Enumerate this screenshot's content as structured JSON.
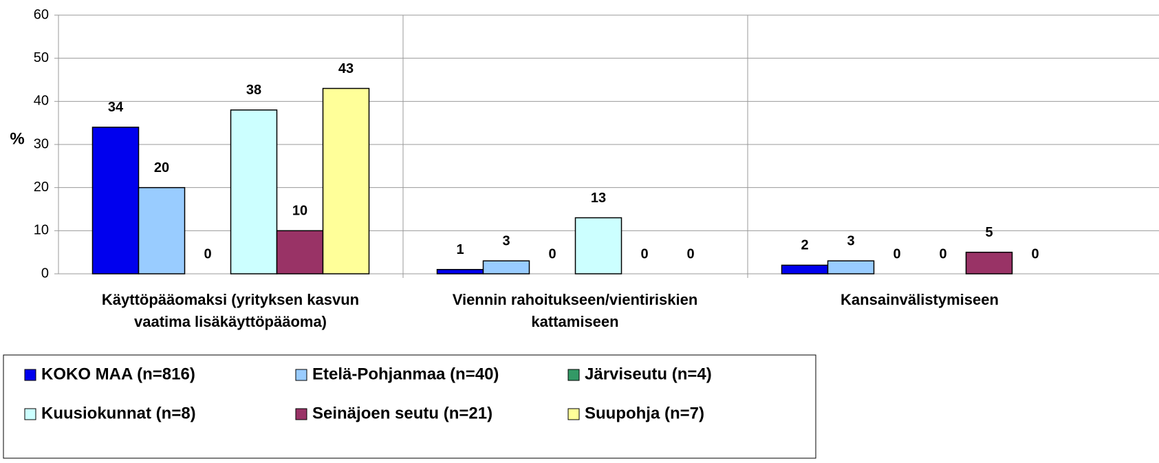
{
  "chart_data": {
    "type": "bar",
    "y_label": "%",
    "categories": [
      "Käyttöpääomaksi (yrityksen kasvun\nvaatima lisäkäyttöpääoma)",
      "Viennin rahoitukseen/vientiriskien\nkattamiseen",
      "Kansainvälistymiseen"
    ],
    "series": [
      {
        "name": "KOKO MAA (n=816)",
        "color": "#0000ee",
        "values": [
          34,
          1,
          2
        ]
      },
      {
        "name": "Etelä-Pohjanmaa (n=40)",
        "color": "#99ccff",
        "values": [
          20,
          3,
          3
        ]
      },
      {
        "name": "Järviseutu (n=4)",
        "color": "#339966",
        "values": [
          0,
          0,
          0
        ]
      },
      {
        "name": "Kuusiokunnat (n=8)",
        "color": "#ccffff",
        "values": [
          38,
          13,
          0
        ]
      },
      {
        "name": "Seinäjoen seutu (n=21)",
        "color": "#993366",
        "values": [
          10,
          0,
          5
        ]
      },
      {
        "name": "Suupohja (n=7)",
        "color": "#ffff99",
        "values": [
          43,
          0,
          0
        ]
      }
    ],
    "ylim": [
      0,
      60
    ],
    "yticks": [
      0,
      10,
      20,
      30,
      40,
      50,
      60
    ],
    "grid": true,
    "legend": "bottom"
  }
}
